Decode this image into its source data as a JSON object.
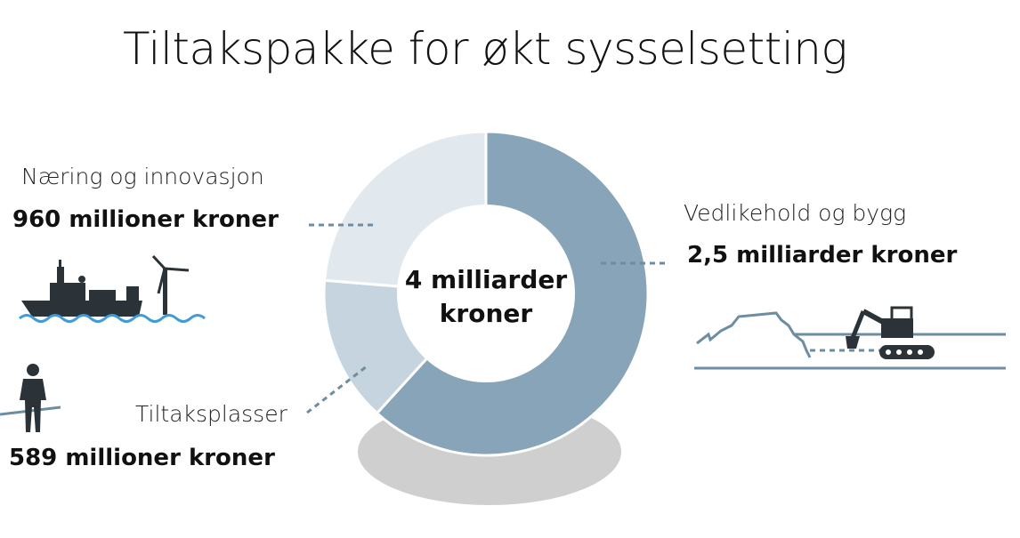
{
  "colors": {
    "vedlikehold": "#87a4b8",
    "tiltaksplasser": "#c5d4de",
    "naering": "#e2e9ee",
    "shadow": "#cfcfcf",
    "connector": "#6e8da2",
    "icon": "#2b3338",
    "water": "#3d9bd9"
  },
  "chart_data": {
    "type": "pie",
    "title": "Tiltakspakke for økt sysselsetting",
    "center_label_line1": "4 milliarder",
    "center_label_line2": "kroner",
    "unit": "millioner kroner",
    "slices": [
      {
        "name": "Vedlikehold og bygg",
        "value": 2500,
        "label": "2,5 milliarder kroner",
        "color": "#87a4b8"
      },
      {
        "name": "Tiltaksplasser",
        "value": 589,
        "label": "589 millioner kroner",
        "color": "#c5d4de"
      },
      {
        "name": "Næring og innovasjon",
        "value": 960,
        "label": "960 millioner kroner",
        "color": "#e2e9ee"
      }
    ]
  },
  "icons": {
    "left_top": "ship-and-wind-turbine-icon",
    "left_bottom": "person-standing-icon",
    "right": "excavator-icon"
  }
}
